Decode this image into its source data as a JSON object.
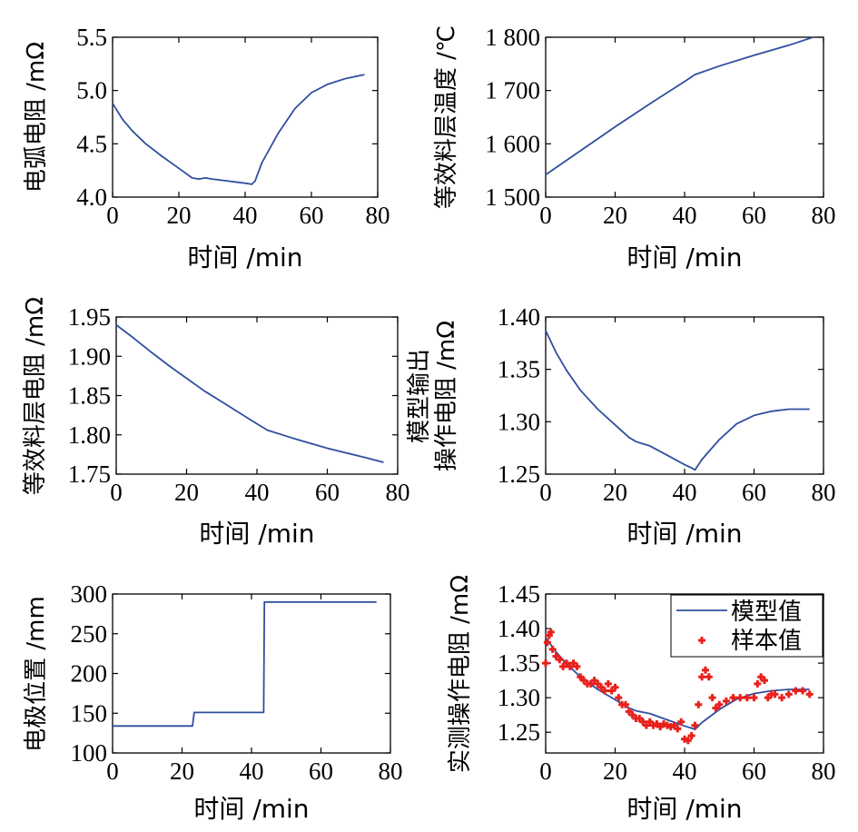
{
  "colors": {
    "line": "#2f4f9e",
    "marker": "#e8201c",
    "axis": "#000000"
  },
  "chart_data": [
    {
      "type": "line",
      "xlabel": "时间 /min",
      "ylabel": "电弧电阻 /mΩ",
      "xlim": [
        0,
        80
      ],
      "ylim": [
        4.0,
        5.5
      ],
      "xticks": [
        0,
        20,
        40,
        60,
        80
      ],
      "yticks": [
        4.0,
        4.5,
        5.0,
        5.5
      ],
      "yticklabels": [
        "4.0",
        "4.5",
        "5.0",
        "5.5"
      ],
      "series": [
        {
          "x": [
            0,
            3,
            6,
            10,
            15,
            20,
            24,
            26,
            28,
            30,
            35,
            40,
            42,
            43,
            45,
            50,
            55,
            60,
            65,
            70,
            76
          ],
          "y": [
            4.88,
            4.73,
            4.62,
            4.5,
            4.38,
            4.27,
            4.18,
            4.17,
            4.18,
            4.17,
            4.15,
            4.13,
            4.12,
            4.15,
            4.32,
            4.6,
            4.83,
            4.98,
            5.06,
            5.11,
            5.15
          ]
        }
      ]
    },
    {
      "type": "line",
      "xlabel": "时间 /min",
      "ylabel": "等效料层温度 /℃",
      "xlim": [
        0,
        80
      ],
      "ylim": [
        1500,
        1800
      ],
      "xticks": [
        0,
        20,
        40,
        60,
        80
      ],
      "yticks": [
        1500,
        1600,
        1700,
        1800
      ],
      "yticklabels": [
        "1 500",
        "1 600",
        "1 700",
        "1 800"
      ],
      "series": [
        {
          "x": [
            0,
            10,
            20,
            30,
            40,
            43,
            50,
            60,
            70,
            77
          ],
          "y": [
            1542,
            1587,
            1632,
            1675,
            1717,
            1730,
            1746,
            1766,
            1785,
            1800
          ]
        }
      ]
    },
    {
      "type": "line",
      "xlabel": "时间  /min",
      "ylabel": "等效料层电阻 /mΩ",
      "xlim": [
        0,
        80
      ],
      "ylim": [
        1.75,
        1.95
      ],
      "xticks": [
        0,
        20,
        40,
        60,
        80
      ],
      "yticks": [
        1.75,
        1.8,
        1.85,
        1.9,
        1.95
      ],
      "yticklabels": [
        "1.75",
        "1.80",
        "1.85",
        "1.90",
        "1.95"
      ],
      "series": [
        {
          "x": [
            0,
            5,
            10,
            15,
            20,
            25,
            30,
            35,
            40,
            43,
            50,
            60,
            70,
            76
          ],
          "y": [
            1.94,
            1.923,
            1.905,
            1.888,
            1.872,
            1.856,
            1.842,
            1.828,
            1.814,
            1.806,
            1.796,
            1.783,
            1.772,
            1.765
          ]
        }
      ]
    },
    {
      "type": "line",
      "xlabel": "时间  /min",
      "ylabel": [
        "模型输出",
        "操作电阻 /mΩ"
      ],
      "xlim": [
        0,
        80
      ],
      "ylim": [
        1.25,
        1.4
      ],
      "xticks": [
        0,
        20,
        40,
        60,
        80
      ],
      "yticks": [
        1.25,
        1.3,
        1.35,
        1.4
      ],
      "yticklabels": [
        "1.25",
        "1.30",
        "1.35",
        "1.40"
      ],
      "series": [
        {
          "x": [
            0,
            3,
            6,
            10,
            15,
            20,
            24,
            26,
            28,
            30,
            35,
            40,
            42,
            43,
            45,
            50,
            55,
            60,
            65,
            70,
            76
          ],
          "y": [
            1.387,
            1.366,
            1.349,
            1.33,
            1.312,
            1.297,
            1.285,
            1.281,
            1.279,
            1.277,
            1.268,
            1.259,
            1.256,
            1.254,
            1.264,
            1.283,
            1.298,
            1.306,
            1.31,
            1.312,
            1.312
          ]
        }
      ]
    },
    {
      "type": "line",
      "xlabel": "时间 /min",
      "ylabel": "电极位置 /mm",
      "xlim": [
        0,
        80
      ],
      "ylim": [
        100,
        300
      ],
      "xticks": [
        0,
        20,
        40,
        60,
        80
      ],
      "yticks": [
        100,
        150,
        200,
        250,
        300
      ],
      "yticklabels": [
        "100",
        "150",
        "200",
        "250",
        "300"
      ],
      "series": [
        {
          "x": [
            0,
            23,
            23,
            23.5,
            43,
            43.5,
            43.7,
            76
          ],
          "y": [
            134,
            134,
            134,
            151,
            151,
            151,
            290,
            290
          ]
        }
      ]
    },
    {
      "type": "line",
      "xlabel": "时间 /min",
      "ylabel": "实测操作电阻 /mΩ",
      "xlim": [
        0,
        80
      ],
      "ylim": [
        1.22,
        1.45
      ],
      "xticks": [
        0,
        20,
        40,
        60,
        80
      ],
      "yticks": [
        1.25,
        1.3,
        1.35,
        1.4,
        1.45
      ],
      "yticklabels": [
        "1.25",
        "1.30",
        "1.35",
        "1.40",
        "1.45"
      ],
      "legend": {
        "position": "top-right",
        "entries": [
          "模型值",
          "样本值"
        ]
      },
      "series": [
        {
          "name": "模型值",
          "style": "line",
          "x": [
            0,
            3,
            6,
            10,
            15,
            20,
            24,
            26,
            28,
            30,
            35,
            40,
            42,
            43,
            45,
            50,
            55,
            60,
            65,
            70,
            76
          ],
          "y": [
            1.387,
            1.366,
            1.349,
            1.33,
            1.312,
            1.297,
            1.285,
            1.281,
            1.279,
            1.277,
            1.268,
            1.259,
            1.256,
            1.254,
            1.264,
            1.283,
            1.298,
            1.306,
            1.31,
            1.312,
            1.312
          ]
        },
        {
          "name": "样本值",
          "style": "markers",
          "x": [
            0,
            0.5,
            1,
            1.5,
            2,
            3,
            4,
            5,
            6,
            7,
            8,
            9,
            10,
            11,
            12,
            13,
            14,
            15,
            16,
            17,
            18,
            19,
            20,
            21,
            22,
            23,
            24,
            25,
            26,
            27,
            28,
            29,
            30,
            31,
            32,
            33,
            34,
            35,
            36,
            37,
            38,
            39,
            40,
            41,
            42,
            43,
            44,
            45,
            46,
            47,
            48,
            49,
            50,
            52,
            54,
            56,
            58,
            60,
            61,
            62,
            63,
            64,
            65,
            66,
            68,
            70,
            72,
            74,
            76
          ],
          "y": [
            1.35,
            1.38,
            1.39,
            1.395,
            1.37,
            1.36,
            1.355,
            1.345,
            1.35,
            1.345,
            1.35,
            1.345,
            1.33,
            1.325,
            1.32,
            1.32,
            1.325,
            1.32,
            1.315,
            1.31,
            1.32,
            1.31,
            1.315,
            1.3,
            1.29,
            1.29,
            1.28,
            1.275,
            1.27,
            1.27,
            1.265,
            1.26,
            1.265,
            1.26,
            1.262,
            1.258,
            1.262,
            1.26,
            1.258,
            1.26,
            1.255,
            1.265,
            1.24,
            1.238,
            1.245,
            1.26,
            1.29,
            1.33,
            1.34,
            1.33,
            1.3,
            1.285,
            1.29,
            1.295,
            1.3,
            1.3,
            1.3,
            1.3,
            1.32,
            1.33,
            1.325,
            1.3,
            1.305,
            1.305,
            1.3,
            1.305,
            1.31,
            1.31,
            1.305
          ]
        }
      ]
    }
  ]
}
